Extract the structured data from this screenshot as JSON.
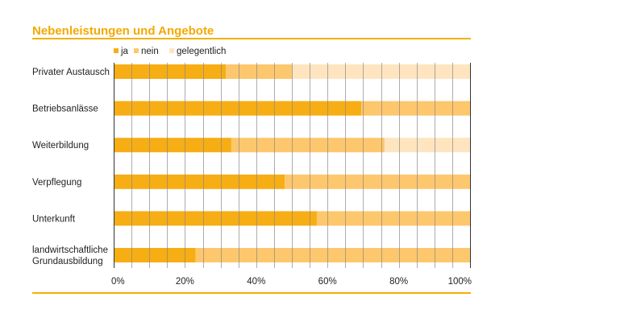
{
  "title": "Nebenleistungen und Angebote",
  "colors": {
    "ja": "#f7ad14",
    "nein": "#fdc76d",
    "gelegentlich": "#fee5bf",
    "accent": "#f5a800",
    "grid": "#8a8a8a"
  },
  "chart_data": {
    "type": "bar",
    "orientation": "horizontal",
    "stacked": true,
    "title": "Nebenleistungen und Angebote",
    "xlabel": "",
    "ylabel": "",
    "xlim": [
      0,
      100
    ],
    "ticks": [
      "0%",
      "20%",
      "40%",
      "60%",
      "80%",
      "100%"
    ],
    "tick_values": [
      0,
      20,
      40,
      60,
      80,
      100
    ],
    "grid": true,
    "legend_position": "top-left",
    "categories": [
      [
        "Privater Austausch"
      ],
      [
        "Betriebsanlässe"
      ],
      [
        "Weiterbildung"
      ],
      [
        "Verpflegung"
      ],
      [
        "Unterkunft"
      ],
      [
        "landwirtschaftliche",
        "Grundausbildung"
      ]
    ],
    "series": [
      {
        "name": "ja",
        "values": [
          31.5,
          69.5,
          33,
          48,
          57,
          23
        ]
      },
      {
        "name": "nein",
        "values": [
          18.5,
          30.5,
          43,
          52,
          43,
          77
        ]
      },
      {
        "name": "gelegentlich",
        "values": [
          50,
          0,
          24,
          0,
          0,
          0
        ]
      }
    ]
  }
}
